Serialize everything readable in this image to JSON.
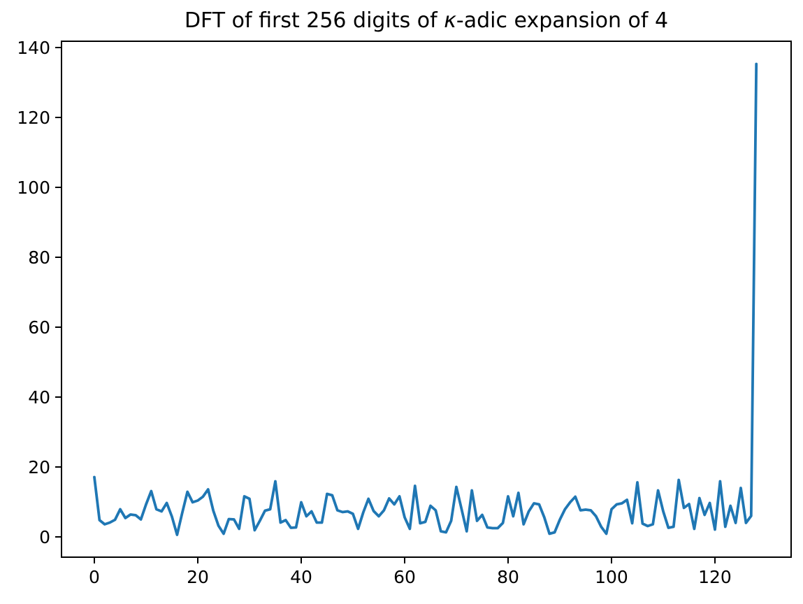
{
  "chart_data": {
    "type": "line",
    "title": "DFT of first 256 digits of κ-adic expansion of 4",
    "title_prefix": "DFT of first 256 digits of ",
    "title_kappa": "κ",
    "title_suffix": "-adic expansion of 4",
    "xlabel": "",
    "ylabel": "",
    "grid": false,
    "legend": "none",
    "line_color": "#1f77b4",
    "axis_color": "#000000",
    "x_start": 0,
    "x_step": 1,
    "xlim": [
      -6.35,
      134.73
    ],
    "ylim": [
      -5.8,
      141.8
    ],
    "x_tick_labels": [
      0,
      20,
      40,
      60,
      80,
      100,
      120
    ],
    "y_tick_labels": [
      0,
      20,
      40,
      60,
      80,
      100,
      120,
      140
    ],
    "values": [
      17.1,
      4.8,
      3.6,
      4.1,
      4.9,
      7.9,
      5.4,
      6.4,
      6.2,
      5.0,
      9.3,
      13.1,
      7.9,
      7.3,
      9.7,
      5.8,
      0.6,
      6.9,
      12.9,
      9.9,
      10.4,
      11.5,
      13.6,
      7.5,
      3.2,
      0.9,
      5.1,
      5.0,
      2.3,
      11.6,
      10.9,
      1.9,
      4.6,
      7.5,
      7.9,
      15.9,
      4.1,
      4.8,
      2.6,
      2.7,
      9.9,
      5.9,
      7.3,
      4.1,
      4.1,
      12.3,
      11.9,
      7.6,
      7.1,
      7.3,
      6.6,
      2.3,
      7.0,
      10.9,
      7.4,
      5.9,
      7.6,
      11.0,
      9.3,
      11.6,
      5.6,
      2.3,
      14.6,
      3.9,
      4.3,
      8.9,
      7.6,
      1.6,
      1.3,
      4.6,
      14.3,
      8.0,
      1.6,
      13.3,
      4.6,
      6.3,
      2.7,
      2.5,
      2.5,
      4.0,
      11.6,
      5.9,
      12.6,
      3.6,
      7.3,
      9.6,
      9.3,
      5.6,
      0.9,
      1.3,
      4.9,
      7.9,
      9.9,
      11.5,
      7.6,
      7.8,
      7.6,
      5.9,
      2.9,
      0.9,
      7.9,
      9.3,
      9.6,
      10.6,
      3.9,
      15.6,
      3.8,
      3.1,
      3.6,
      13.3,
      7.3,
      2.6,
      2.9,
      16.3,
      8.3,
      9.4,
      2.3,
      11.1,
      6.3,
      9.7,
      2.1,
      15.9,
      2.9,
      8.9,
      4.0,
      14.0,
      4.0,
      6.0,
      135.3
    ]
  }
}
